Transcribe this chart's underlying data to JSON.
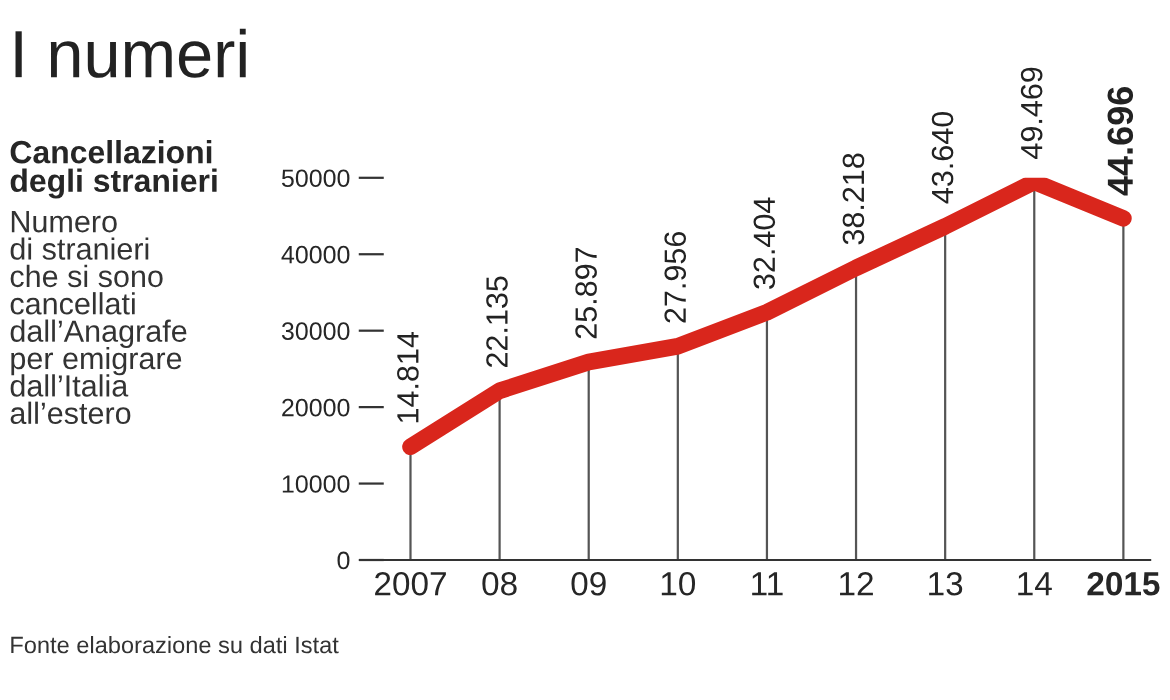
{
  "chart_data": {
    "type": "line",
    "title": "I numeri",
    "subtitle": "Cancellazioni\ndegli stranieri",
    "annotations": [
      "Numero\ndi stranieri\nche si sono\ncancellati\ndall’Anagrafe\nper emigrare\ndall’Italia\nall’estero",
      "Fonte elaborazione su dati Istat"
    ],
    "categories": [
      "2007",
      "08",
      "09",
      "10",
      "11",
      "12",
      "13",
      "14",
      "2015"
    ],
    "series": [
      {
        "color": "#d9261c",
        "values": [
          14814,
          22135,
          25897,
          27956,
          32404,
          38218,
          43640,
          49469,
          44696
        ],
        "value_labels": [
          "14.814",
          "22.135",
          "25.897",
          "27.956",
          "32.404",
          "38.218",
          "43.640",
          "49.469",
          "44.696"
        ]
      }
    ],
    "ylim": [
      0,
      50000
    ],
    "yticks": [
      0,
      10000,
      20000,
      30000,
      40000,
      50000
    ],
    "grid": "x",
    "legend": false,
    "line_style": "solid"
  }
}
